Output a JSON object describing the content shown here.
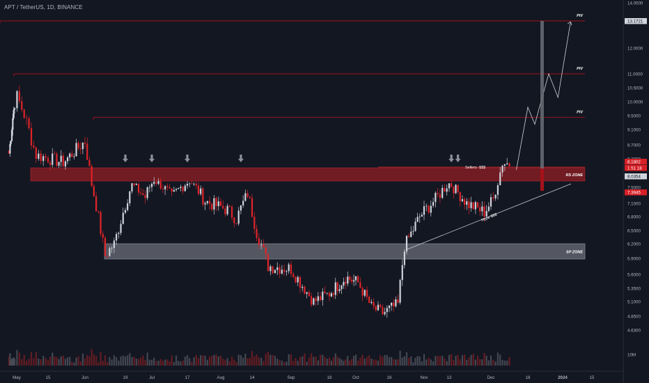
{
  "header": {
    "title": "APT / TetherUS, 1D, BINANCE"
  },
  "colors": {
    "background": "#131722",
    "up": "#d1d4dc",
    "down": "#e0242a",
    "resistance_line": "#a5121a",
    "rs_zone_fill": "#8c1c22",
    "sp_zone_fill": "#8a8d96",
    "axis_text": "#b2b5be"
  },
  "chart_data": {
    "type": "candlestick",
    "y_axis": {
      "ticks": [
        "14.0000",
        "13.1721",
        "12.0000",
        "11.0000",
        "10.5000",
        "10.0000",
        "9.5000",
        "9.1000",
        "8.7000",
        "8.3000",
        "8.1802",
        "7.8600",
        "8.0354",
        "7.5000",
        "7.3945",
        "7.1000",
        "6.8000",
        "6.5000",
        "6.2000",
        "5.9000",
        "5.6000",
        "5.3500",
        "5.1000",
        "4.8500",
        "4.6300",
        "10M"
      ],
      "price_badges": [
        {
          "value": "13.1721",
          "style": "light"
        },
        {
          "value": "8.1802",
          "style": "red"
        },
        {
          "value": "1 51 18",
          "style": "red"
        },
        {
          "value": "8.0354",
          "style": "light"
        },
        {
          "value": "7.3945",
          "style": "red"
        }
      ],
      "range": [
        4.6,
        14.0
      ]
    },
    "x_axis": {
      "ticks": [
        "May",
        "15",
        "Jun",
        "19",
        "Jul",
        "17",
        "Aug",
        "14",
        "Sep",
        "18",
        "Oct",
        "16",
        "Nov",
        "13",
        "Dec",
        "18",
        "2024",
        "15"
      ]
    },
    "levels": [
      {
        "label": "PIV",
        "price": 13.17
      },
      {
        "label": "PIV",
        "price": 11.0
      },
      {
        "label": "PIV",
        "price": 9.45
      }
    ],
    "zones": [
      {
        "label": "RS ZONE",
        "top": 8.05,
        "bottom": 7.75
      },
      {
        "label": "SP ZONE",
        "top": 6.2,
        "bottom": 5.88
      }
    ],
    "annotations": [
      "Sellers -$$$",
      "Hype $$$"
    ],
    "marker_arrows_at_dates": [
      "Jun 19",
      "Jul 1",
      "Jul 17",
      "Aug 10",
      "Nov 13",
      "Nov 16"
    ],
    "projection_path": [
      {
        "date": "Dec 12",
        "price": 8.0
      },
      {
        "date": "Dec 17",
        "price": 9.8
      },
      {
        "date": "Dec 20",
        "price": 9.25
      },
      {
        "date": "Dec 26",
        "price": 11.0
      },
      {
        "date": "Dec 30",
        "price": 10.15
      },
      {
        "date": "Jan 5",
        "price": 13.1
      }
    ],
    "anchors": [
      {
        "date": "Apr 25",
        "price": 8.45
      },
      {
        "date": "May 2",
        "price": 10.2
      },
      {
        "date": "May 10",
        "price": 8.4
      },
      {
        "date": "May 22",
        "price": 8.2
      },
      {
        "date": "Jun 1",
        "price": 8.8
      },
      {
        "date": "Jun 4",
        "price": 7.6
      },
      {
        "date": "Jun 10",
        "price": 5.95
      },
      {
        "date": "Jun 14",
        "price": 6.2
      },
      {
        "date": "Jun 22",
        "price": 7.6
      },
      {
        "date": "Jun 28",
        "price": 7.25
      },
      {
        "date": "Jul 2",
        "price": 7.8
      },
      {
        "date": "Jul 10",
        "price": 7.25
      },
      {
        "date": "Jul 18",
        "price": 7.75
      },
      {
        "date": "Jul 25",
        "price": 7.15
      },
      {
        "date": "Aug 4",
        "price": 6.95
      },
      {
        "date": "Aug 8",
        "price": 6.75
      },
      {
        "date": "Aug 13",
        "price": 7.35
      },
      {
        "date": "Aug 17",
        "price": 6.45
      },
      {
        "date": "Aug 22",
        "price": 5.75
      },
      {
        "date": "Sep 1",
        "price": 5.7
      },
      {
        "date": "Sep 11",
        "price": 5.1
      },
      {
        "date": "Sep 18",
        "price": 5.25
      },
      {
        "date": "Sep 26",
        "price": 5.55
      },
      {
        "date": "Oct 2",
        "price": 5.45
      },
      {
        "date": "Oct 8",
        "price": 5.0
      },
      {
        "date": "Oct 13",
        "price": 4.9
      },
      {
        "date": "Oct 20",
        "price": 5.05
      },
      {
        "date": "Oct 23",
        "price": 6.15
      },
      {
        "date": "Oct 30",
        "price": 6.8
      },
      {
        "date": "Nov 6",
        "price": 7.2
      },
      {
        "date": "Nov 12",
        "price": 7.65
      },
      {
        "date": "Nov 20",
        "price": 7.1
      },
      {
        "date": "Nov 28",
        "price": 6.9
      },
      {
        "date": "Dec 2",
        "price": 7.2
      },
      {
        "date": "Dec 6",
        "price": 8.2
      },
      {
        "date": "Dec 9",
        "price": 8.15
      }
    ]
  }
}
